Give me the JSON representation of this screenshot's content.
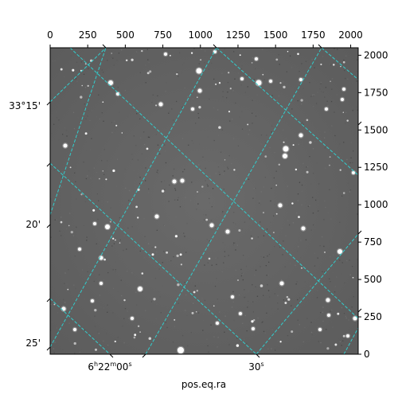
{
  "figure": {
    "kind": "astronomical-image",
    "colormap": "gray",
    "grid_color": "#2fd3d3",
    "x_pixel_ticks": [
      "0",
      "250",
      "500",
      "750",
      "1000",
      "1250",
      "1500",
      "1750",
      "2000"
    ],
    "y_pixel_ticks": [
      "0",
      "250",
      "500",
      "750",
      "1000",
      "1250",
      "1500",
      "1750",
      "2000"
    ],
    "dec_ticks": [
      {
        "label": "33°15'"
      },
      {
        "label": "20'"
      },
      {
        "label": "25'"
      }
    ],
    "ra_ticks": [
      {
        "label": "6h22m00s",
        "h": "6",
        "m": "22",
        "s": "00"
      },
      {
        "label": "30s",
        "s": "30"
      }
    ],
    "xlabel": "pos.eq.ra"
  }
}
